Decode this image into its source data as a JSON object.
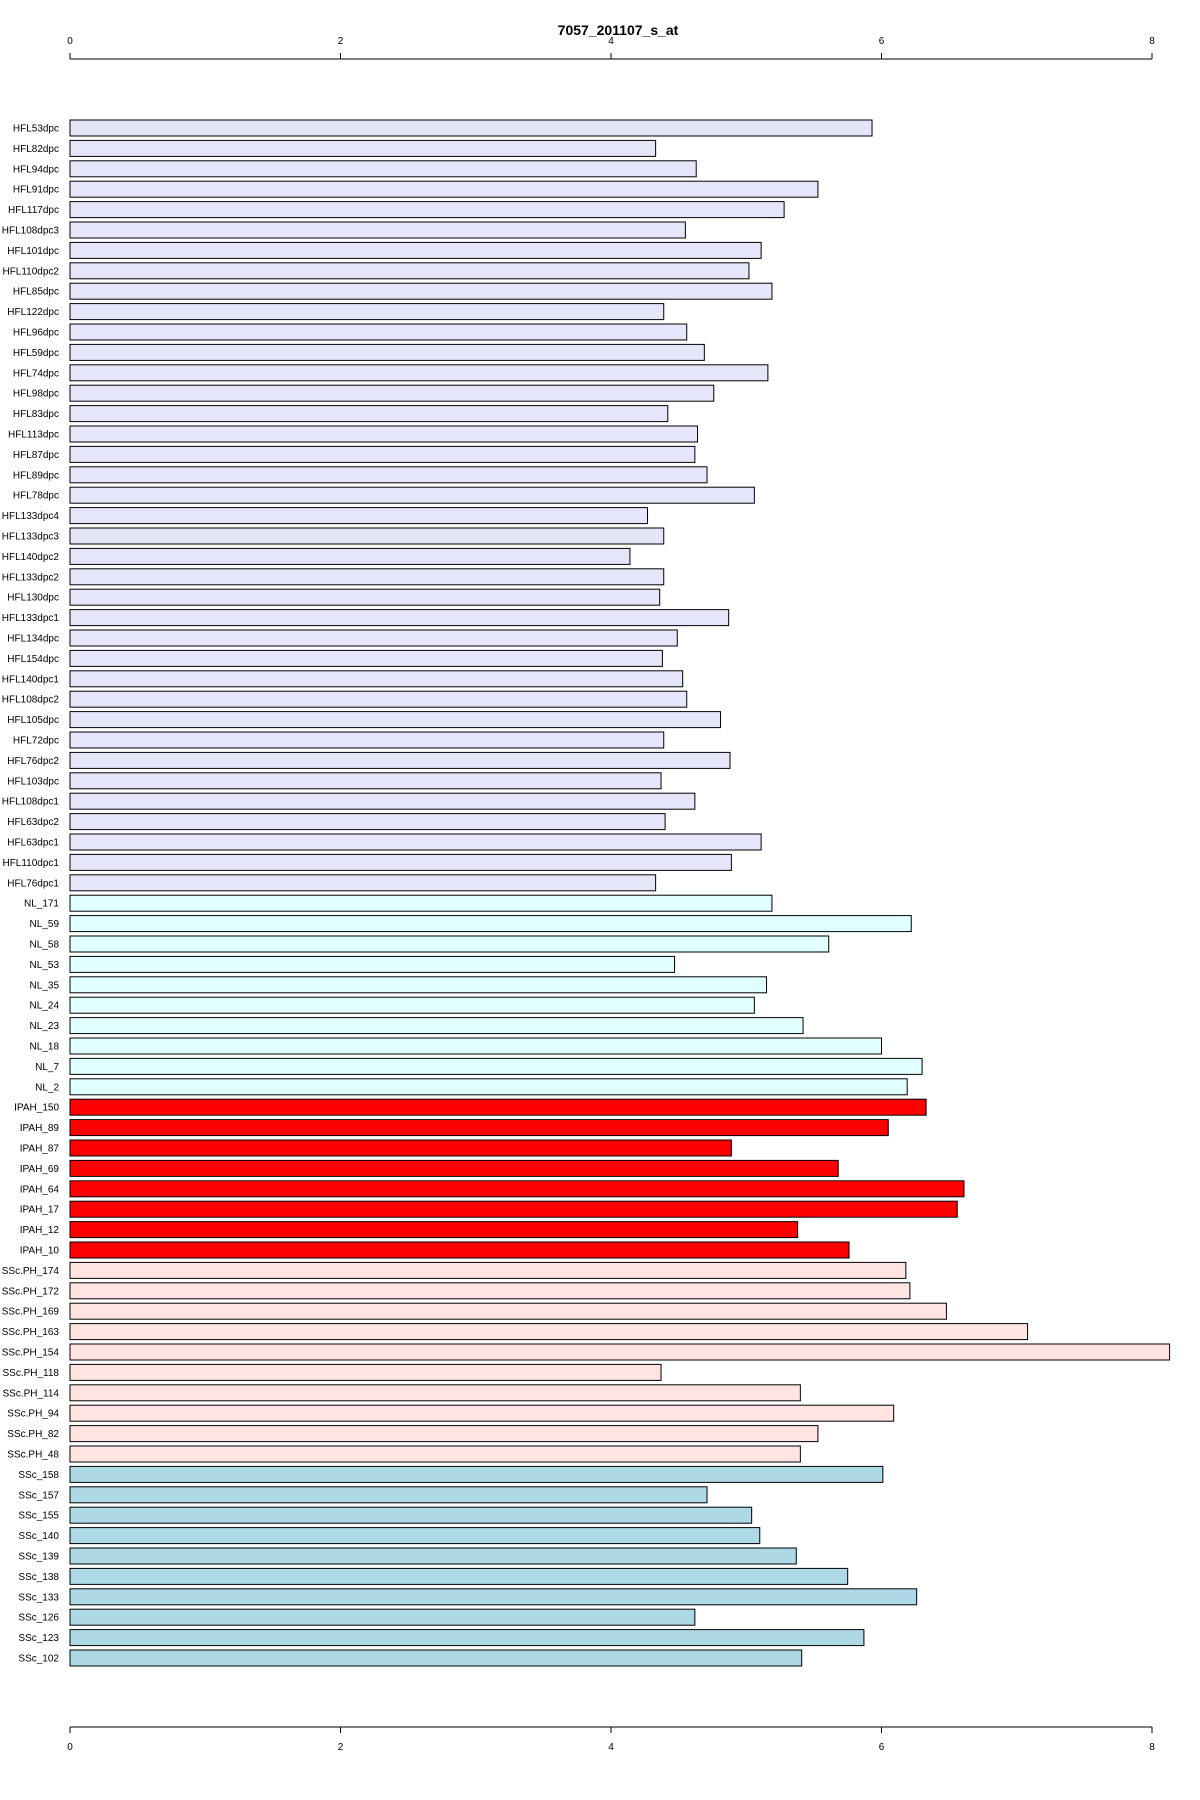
{
  "chart_data": {
    "type": "bar",
    "orientation": "horizontal",
    "title": "7057_201107_s_at",
    "xlabel": "",
    "ylabel": "",
    "xlim": [
      0,
      8
    ],
    "ticks": [
      0,
      2,
      4,
      6,
      8
    ],
    "group_colors": {
      "HFL": "#e6e6fa",
      "NL": "#e0ffff",
      "IPAH": "#ff0000",
      "SScPH": "#ffe4e1",
      "SSc": "#add8e6"
    },
    "bars": [
      {
        "label": "HFL53dpc",
        "value": 5.93,
        "group": "HFL"
      },
      {
        "label": "HFL82dpc",
        "value": 4.33,
        "group": "HFL"
      },
      {
        "label": "HFL94dpc",
        "value": 4.63,
        "group": "HFL"
      },
      {
        "label": "HFL91dpc",
        "value": 5.53,
        "group": "HFL"
      },
      {
        "label": "HFL117dpc",
        "value": 5.28,
        "group": "HFL"
      },
      {
        "label": "HFL108dpc3",
        "value": 4.55,
        "group": "HFL"
      },
      {
        "label": "HFL101dpc",
        "value": 5.11,
        "group": "HFL"
      },
      {
        "label": "HFL110dpc2",
        "value": 5.02,
        "group": "HFL"
      },
      {
        "label": "HFL85dpc",
        "value": 5.19,
        "group": "HFL"
      },
      {
        "label": "HFL122dpc",
        "value": 4.39,
        "group": "HFL"
      },
      {
        "label": "HFL96dpc",
        "value": 4.56,
        "group": "HFL"
      },
      {
        "label": "HFL59dpc",
        "value": 4.69,
        "group": "HFL"
      },
      {
        "label": "HFL74dpc",
        "value": 5.16,
        "group": "HFL"
      },
      {
        "label": "HFL98dpc",
        "value": 4.76,
        "group": "HFL"
      },
      {
        "label": "HFL83dpc",
        "value": 4.42,
        "group": "HFL"
      },
      {
        "label": "HFL113dpc",
        "value": 4.64,
        "group": "HFL"
      },
      {
        "label": "HFL87dpc",
        "value": 4.62,
        "group": "HFL"
      },
      {
        "label": "HFL89dpc",
        "value": 4.71,
        "group": "HFL"
      },
      {
        "label": "HFL78dpc",
        "value": 5.06,
        "group": "HFL"
      },
      {
        "label": "HFL133dpc4",
        "value": 4.27,
        "group": "HFL"
      },
      {
        "label": "HFL133dpc3",
        "value": 4.39,
        "group": "HFL"
      },
      {
        "label": "HFL140dpc2",
        "value": 4.14,
        "group": "HFL"
      },
      {
        "label": "HFL133dpc2",
        "value": 4.39,
        "group": "HFL"
      },
      {
        "label": "HFL130dpc",
        "value": 4.36,
        "group": "HFL"
      },
      {
        "label": "HFL133dpc1",
        "value": 4.87,
        "group": "HFL"
      },
      {
        "label": "HFL134dpc",
        "value": 4.49,
        "group": "HFL"
      },
      {
        "label": "HFL154dpc",
        "value": 4.38,
        "group": "HFL"
      },
      {
        "label": "HFL140dpc1",
        "value": 4.53,
        "group": "HFL"
      },
      {
        "label": "HFL108dpc2",
        "value": 4.56,
        "group": "HFL"
      },
      {
        "label": "HFL105dpc",
        "value": 4.81,
        "group": "HFL"
      },
      {
        "label": "HFL72dpc",
        "value": 4.39,
        "group": "HFL"
      },
      {
        "label": "HFL76dpc2",
        "value": 4.88,
        "group": "HFL"
      },
      {
        "label": "HFL103dpc",
        "value": 4.37,
        "group": "HFL"
      },
      {
        "label": "HFL108dpc1",
        "value": 4.62,
        "group": "HFL"
      },
      {
        "label": "HFL63dpc2",
        "value": 4.4,
        "group": "HFL"
      },
      {
        "label": "HFL63dpc1",
        "value": 5.11,
        "group": "HFL"
      },
      {
        "label": "HFL110dpc1",
        "value": 4.89,
        "group": "HFL"
      },
      {
        "label": "HFL76dpc1",
        "value": 4.33,
        "group": "HFL"
      },
      {
        "label": "NL_171",
        "value": 5.19,
        "group": "NL"
      },
      {
        "label": "NL_59",
        "value": 6.22,
        "group": "NL"
      },
      {
        "label": "NL_58",
        "value": 5.61,
        "group": "NL"
      },
      {
        "label": "NL_53",
        "value": 4.47,
        "group": "NL"
      },
      {
        "label": "NL_35",
        "value": 5.15,
        "group": "NL"
      },
      {
        "label": "NL_24",
        "value": 5.06,
        "group": "NL"
      },
      {
        "label": "NL_23",
        "value": 5.42,
        "group": "NL"
      },
      {
        "label": "NL_18",
        "value": 6.0,
        "group": "NL"
      },
      {
        "label": "NL_7",
        "value": 6.3,
        "group": "NL"
      },
      {
        "label": "NL_2",
        "value": 6.19,
        "group": "NL"
      },
      {
        "label": "IPAH_150",
        "value": 6.33,
        "group": "IPAH"
      },
      {
        "label": "IPAH_89",
        "value": 6.05,
        "group": "IPAH"
      },
      {
        "label": "IPAH_87",
        "value": 4.89,
        "group": "IPAH"
      },
      {
        "label": "IPAH_69",
        "value": 5.68,
        "group": "IPAH"
      },
      {
        "label": "IPAH_64",
        "value": 6.61,
        "group": "IPAH"
      },
      {
        "label": "IPAH_17",
        "value": 6.56,
        "group": "IPAH"
      },
      {
        "label": "IPAH_12",
        "value": 5.38,
        "group": "IPAH"
      },
      {
        "label": "IPAH_10",
        "value": 5.76,
        "group": "IPAH"
      },
      {
        "label": "SSc.PH_174",
        "value": 6.18,
        "group": "SScPH"
      },
      {
        "label": "SSc.PH_172",
        "value": 6.21,
        "group": "SScPH"
      },
      {
        "label": "SSc.PH_169",
        "value": 6.48,
        "group": "SScPH"
      },
      {
        "label": "SSc.PH_163",
        "value": 7.08,
        "group": "SScPH"
      },
      {
        "label": "SSc.PH_154",
        "value": 8.13,
        "group": "SScPH"
      },
      {
        "label": "SSc.PH_118",
        "value": 4.37,
        "group": "SScPH"
      },
      {
        "label": "SSc.PH_114",
        "value": 5.4,
        "group": "SScPH"
      },
      {
        "label": "SSc.PH_94",
        "value": 6.09,
        "group": "SScPH"
      },
      {
        "label": "SSc.PH_82",
        "value": 5.53,
        "group": "SScPH"
      },
      {
        "label": "SSc.PH_48",
        "value": 5.4,
        "group": "SScPH"
      },
      {
        "label": "SSc_158",
        "value": 6.01,
        "group": "SSc"
      },
      {
        "label": "SSc_157",
        "value": 4.71,
        "group": "SSc"
      },
      {
        "label": "SSc_155",
        "value": 5.04,
        "group": "SSc"
      },
      {
        "label": "SSc_140",
        "value": 5.1,
        "group": "SSc"
      },
      {
        "label": "SSc_139",
        "value": 5.37,
        "group": "SSc"
      },
      {
        "label": "SSc_138",
        "value": 5.75,
        "group": "SSc"
      },
      {
        "label": "SSc_133",
        "value": 6.26,
        "group": "SSc"
      },
      {
        "label": "SSc_126",
        "value": 4.62,
        "group": "SSc"
      },
      {
        "label": "SSc_123",
        "value": 5.87,
        "group": "SSc"
      },
      {
        "label": "SSc_102",
        "value": 5.41,
        "group": "SSc"
      }
    ]
  }
}
